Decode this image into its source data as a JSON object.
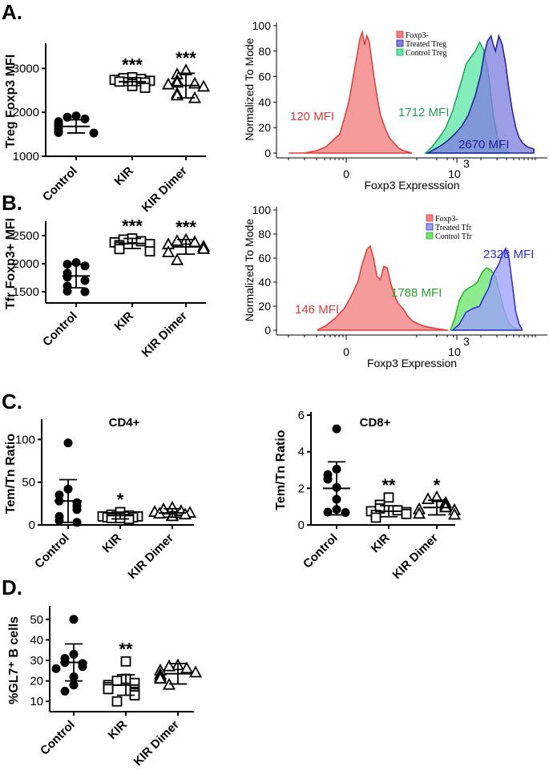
{
  "panel_labels": {
    "A": "A.",
    "B": "B.",
    "C": "C.",
    "D": "D."
  },
  "chart_data": [
    {
      "id": "treg",
      "type": "scatter",
      "panel": "A.",
      "title": "",
      "ylabel": "Treg Foxp3 MFI",
      "ylim": [
        1000,
        3500
      ],
      "yticks": [
        1000,
        2000,
        3000
      ],
      "categories": [
        "Control",
        "KIR",
        "KIR Dimer"
      ],
      "markers": [
        "circle",
        "square",
        "triangle"
      ],
      "significance": [
        "",
        "***",
        "***"
      ],
      "mean": [
        1680,
        2700,
        2610
      ],
      "sd": [
        150,
        90,
        280
      ],
      "values": [
        [
          1920,
          1890,
          1850,
          1790,
          1730,
          1700,
          1640,
          1580,
          1540,
          1530
        ],
        [
          2800,
          2780,
          2760,
          2740,
          2720,
          2700,
          2680,
          2650,
          2600,
          2560
        ],
        [
          2950,
          2860,
          2720,
          2670,
          2650,
          2630,
          2580,
          2420,
          2380,
          2320
        ]
      ]
    },
    {
      "id": "tfr",
      "type": "scatter",
      "panel": "B.",
      "title": "",
      "ylabel": "Tfr Foxp3+ MFI",
      "ylim": [
        1300,
        2700
      ],
      "yticks": [
        1500,
        2000,
        2500
      ],
      "categories": [
        "Control",
        "KIR",
        "KIR Dimer"
      ],
      "markers": [
        "circle",
        "square",
        "triangle"
      ],
      "significance": [
        "",
        "***",
        "***"
      ],
      "mean": [
        1780,
        2360,
        2300
      ],
      "sd": [
        210,
        90,
        130
      ],
      "values": [
        [
          2020,
          1990,
          1960,
          1830,
          1760,
          1700,
          1600,
          1510,
          1500
        ],
        [
          2450,
          2430,
          2400,
          2380,
          2350,
          2330,
          2300,
          2260,
          2220
        ],
        [
          2420,
          2400,
          2380,
          2340,
          2300,
          2260,
          2200,
          2060
        ]
      ]
    },
    {
      "id": "cd4",
      "type": "scatter",
      "panel": "C.",
      "title": "CD4+",
      "ylabel": "Tem/Tn Ratio",
      "ylim": [
        0,
        120
      ],
      "yticks": [
        0,
        50,
        100
      ],
      "categories": [
        "Control",
        "KIR",
        "KIR Dimer"
      ],
      "markers": [
        "circle",
        "square",
        "triangle"
      ],
      "significance": [
        "",
        "*",
        ""
      ],
      "mean": [
        28,
        11,
        14
      ],
      "sd": [
        25,
        4,
        5
      ],
      "values": [
        [
          96,
          42,
          35,
          28,
          26,
          22,
          18,
          10,
          5,
          3
        ],
        [
          15,
          12,
          11,
          10,
          10,
          9,
          9,
          8,
          8,
          7
        ],
        [
          20,
          18,
          16,
          15,
          14,
          13,
          12,
          11,
          10
        ]
      ]
    },
    {
      "id": "cd8",
      "type": "scatter",
      "panel": "",
      "title": "CD8+",
      "ylabel": "Tem/Tn Ratio",
      "ylim": [
        0,
        6
      ],
      "yticks": [
        0,
        2,
        4,
        6
      ],
      "categories": [
        "Control",
        "KIR",
        "KIR Dimer"
      ],
      "markers": [
        "circle",
        "square",
        "triangle"
      ],
      "significance": [
        "",
        "**",
        "*"
      ],
      "mean": [
        2.0,
        0.75,
        0.95
      ],
      "sd": [
        1.45,
        0.3,
        0.4
      ],
      "values": [
        [
          5.25,
          3.05,
          2.75,
          2.5,
          2.05,
          1.4,
          0.85,
          0.7,
          0.68
        ],
        [
          1.5,
          1.1,
          0.9,
          0.8,
          0.75,
          0.7,
          0.6,
          0.55,
          0.4
        ],
        [
          1.5,
          1.4,
          1.2,
          1.05,
          0.95,
          0.85,
          0.8,
          0.6,
          0.55
        ]
      ]
    },
    {
      "id": "gl7",
      "type": "scatter",
      "panel": "D.",
      "title": "",
      "ylabel": "%GL7⁺ B cells",
      "ylim": [
        5,
        55
      ],
      "yticks": [
        10,
        20,
        30,
        40,
        50
      ],
      "categories": [
        "Control",
        "KIR",
        "KIR Dimer"
      ],
      "markers": [
        "circle",
        "square",
        "triangle"
      ],
      "significance": [
        "",
        "**",
        ""
      ],
      "mean": [
        29,
        18,
        23.5
      ],
      "sd": [
        9,
        5,
        5
      ],
      "values": [
        [
          50,
          33,
          31,
          29,
          28.5,
          27,
          26,
          22,
          18,
          15
        ],
        [
          29.5,
          21,
          20,
          19,
          18,
          17,
          16,
          14,
          13,
          10
        ],
        [
          27.5,
          27,
          26,
          25,
          24,
          23,
          22,
          21,
          18
        ]
      ]
    },
    {
      "id": "hist1",
      "type": "area",
      "title": "",
      "xlabel": "Foxp3 Expresssion",
      "ylabel": "Normalized To Mode",
      "ylim": [
        0,
        100
      ],
      "yticks": [
        0,
        20,
        40,
        60,
        80,
        100
      ],
      "xtick_labels": [
        "0",
        "10",
        "3"
      ],
      "legend": [
        "Foxp3-",
        "Treated Treg",
        "Control Treg"
      ],
      "mfi_labels": [
        "120 MFI",
        "1712 MFI",
        "2670 MFI"
      ],
      "series": [
        {
          "name": "Foxp3-",
          "color": "#f27f7f",
          "edge": "#e03a3a",
          "x": [
            0.55,
            1.2,
            1.8,
            2.2,
            2.5,
            2.8,
            3.0,
            3.2,
            3.35,
            3.5,
            3.6,
            3.7,
            3.8,
            3.9,
            4.0,
            4.1,
            4.2,
            4.3,
            4.45,
            4.6,
            4.8,
            5.0,
            5.2,
            5.4,
            5.6,
            6.0
          ],
          "y": [
            0,
            0,
            2,
            5,
            10,
            15,
            27,
            40,
            55,
            70,
            80,
            90,
            95,
            85,
            92,
            88,
            75,
            62,
            45,
            30,
            20,
            12,
            8,
            4,
            2,
            0
          ]
        },
        {
          "name": "Treated Treg",
          "color": "#8080e0",
          "edge": "#1e1e9a",
          "x": [
            6.7,
            7.0,
            7.3,
            7.6,
            7.9,
            8.2,
            8.5,
            8.8,
            9.05,
            9.2,
            9.35,
            9.5,
            9.6,
            9.7,
            9.85,
            10.0,
            10.15,
            10.3,
            10.45,
            10.6,
            10.75,
            10.9,
            11.1,
            11.4
          ],
          "y": [
            0,
            3,
            6,
            10,
            15,
            21,
            30,
            45,
            62,
            78,
            88,
            92,
            85,
            80,
            92,
            85,
            70,
            50,
            33,
            20,
            12,
            8,
            5,
            3
          ]
        },
        {
          "name": "Control Treg",
          "color": "#5fe8a6",
          "edge": "#1aa35a",
          "x": [
            6.6,
            6.9,
            7.2,
            7.5,
            7.8,
            8.0,
            8.2,
            8.4,
            8.6,
            8.8,
            9.0,
            9.2,
            9.4,
            9.6,
            9.8,
            10.0,
            10.3
          ],
          "y": [
            0,
            5,
            12,
            20,
            33,
            45,
            57,
            70,
            75,
            80,
            87,
            80,
            60,
            30,
            12,
            5,
            0
          ]
        }
      ]
    },
    {
      "id": "hist2",
      "type": "area",
      "title": "",
      "xlabel": "Foxp3 Expression",
      "ylabel": "Normalized To Mode",
      "ylim": [
        0,
        100
      ],
      "yticks": [
        0,
        20,
        40,
        60,
        80,
        100
      ],
      "xtick_labels": [
        "0",
        "10",
        "3"
      ],
      "legend": [
        "Foxp3-",
        "Treated Tfr",
        "Control Tfr"
      ],
      "mfi_labels": [
        "146 MFI",
        "1788 MFI",
        "2328 MFI"
      ],
      "series": [
        {
          "name": "Foxp3-",
          "color": "#f27f7f",
          "edge": "#e03a3a",
          "x": [
            1.8,
            2.2,
            2.6,
            3.0,
            3.3,
            3.6,
            3.8,
            4.0,
            4.15,
            4.3,
            4.45,
            4.6,
            4.75,
            4.9,
            5.05,
            5.2,
            5.4,
            5.6,
            5.8,
            6.0,
            6.3,
            6.6,
            6.9,
            7.2,
            7.6
          ],
          "y": [
            0,
            4,
            10,
            18,
            28,
            40,
            55,
            67,
            70,
            60,
            45,
            42,
            53,
            52,
            40,
            30,
            22,
            18,
            12,
            8,
            5,
            3,
            2,
            1,
            0
          ]
        },
        {
          "name": "Treated Tfr",
          "color": "#9ea0ff",
          "edge": "#2a2ae0",
          "x": [
            7.8,
            8.1,
            8.4,
            8.7,
            9.0,
            9.2,
            9.4,
            9.55,
            9.7,
            9.85,
            10.0,
            10.15,
            10.3,
            10.45,
            10.6,
            10.75,
            10.9
          ],
          "y": [
            0,
            5,
            15,
            18,
            20,
            28,
            35,
            45,
            50,
            55,
            63,
            68,
            60,
            38,
            15,
            5,
            0
          ]
        },
        {
          "name": "Control Tfr",
          "color": "#6be66b",
          "edge": "#2cb02c",
          "x": [
            7.7,
            7.9,
            8.1,
            8.3,
            8.5,
            8.7,
            8.9,
            9.1,
            9.3,
            9.5,
            9.7,
            9.9,
            10.1,
            10.3,
            10.5,
            10.8
          ],
          "y": [
            0,
            10,
            25,
            32,
            35,
            37,
            40,
            48,
            52,
            50,
            45,
            30,
            15,
            6,
            2,
            0
          ]
        }
      ]
    }
  ]
}
